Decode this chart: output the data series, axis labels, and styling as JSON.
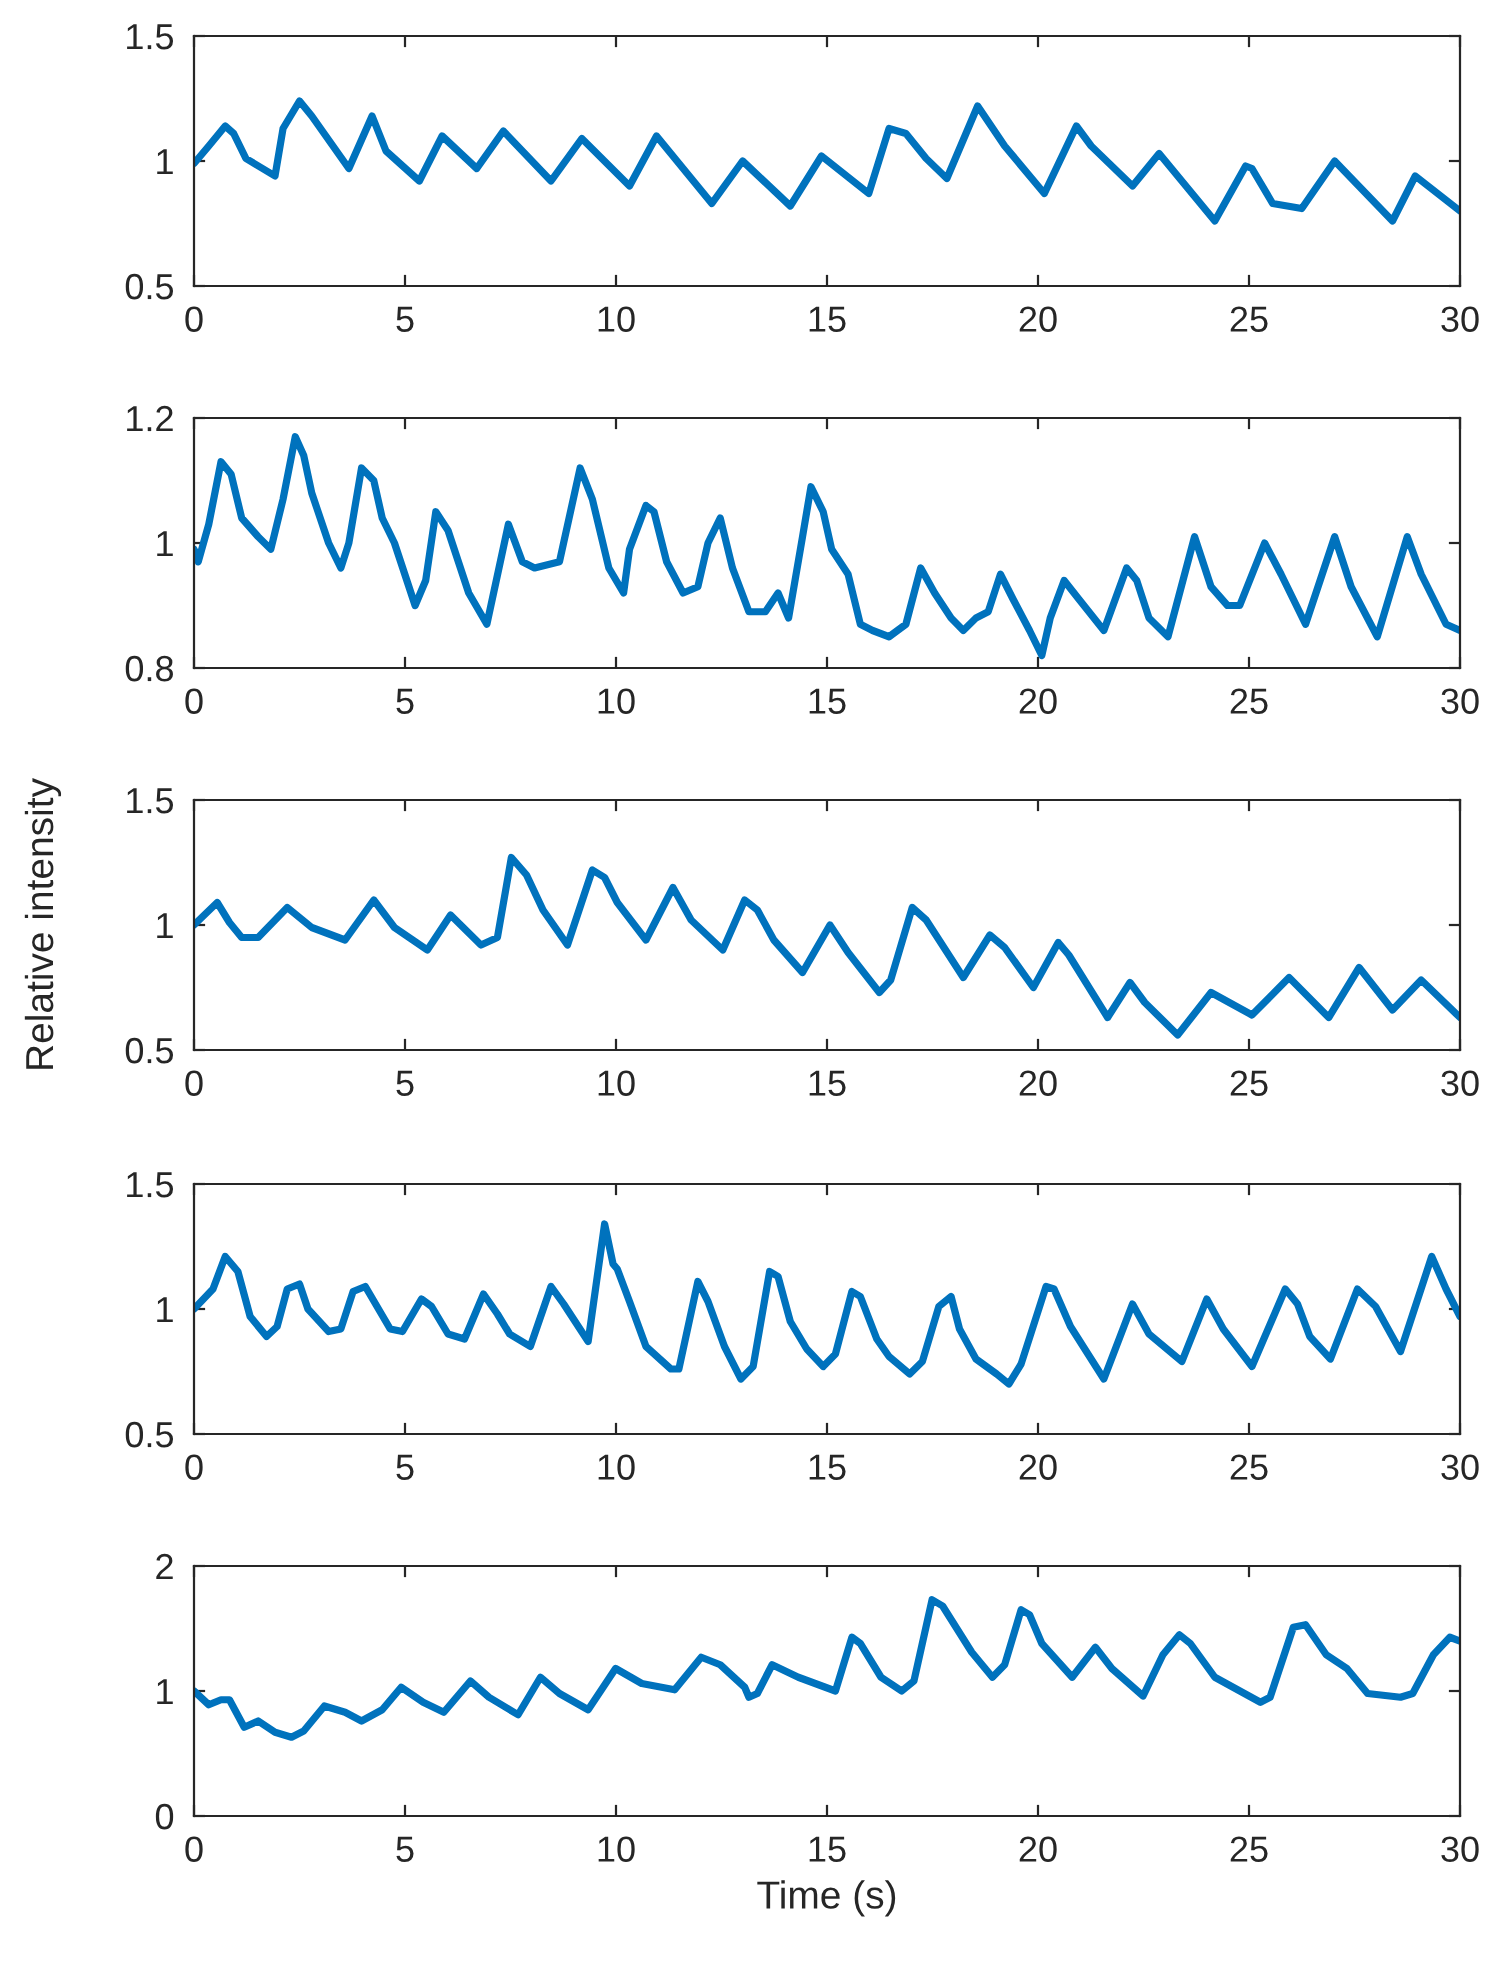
{
  "chart_data": [
    {
      "type": "line",
      "x": [
        0,
        0.35,
        0.74,
        0.94,
        1.23,
        1.92,
        2.11,
        2.5,
        2.79,
        3.67,
        4.22,
        4.55,
        5.34,
        5.88,
        6.7,
        7.33,
        8.46,
        9.19,
        10.32,
        10.96,
        12.27,
        13.0,
        14.13,
        14.87,
        15.99,
        16.47,
        16.87,
        17.35,
        17.84,
        18.57,
        19.21,
        20.15,
        20.91,
        21.26,
        22.24,
        22.87,
        24.19,
        24.92,
        25.07,
        25.56,
        26.25,
        27.03,
        28.4,
        28.94,
        30
      ],
      "series": [
        {
          "color": "#0072bd",
          "values": [
            0.99,
            1.06,
            1.14,
            1.11,
            1.01,
            0.94,
            1.13,
            1.24,
            1.18,
            0.97,
            1.18,
            1.04,
            0.92,
            1.1,
            0.97,
            1.12,
            0.92,
            1.09,
            0.9,
            1.1,
            0.83,
            1.0,
            0.82,
            1.02,
            0.87,
            1.13,
            1.11,
            1.01,
            0.93,
            1.22,
            1.06,
            0.87,
            1.14,
            1.06,
            0.9,
            1.03,
            0.76,
            0.98,
            0.97,
            0.83,
            0.81,
            1.0,
            0.76,
            0.94,
            0.8
          ]
        }
      ],
      "xlim": [
        0,
        30
      ],
      "xticks": [
        0,
        5,
        10,
        15,
        20,
        25,
        30
      ],
      "ylim": [
        0.5,
        1.5
      ],
      "yticks": [
        0.5,
        1,
        1.5
      ],
      "grid": false
    },
    {
      "type": "line",
      "x": [
        0,
        0.1,
        0.35,
        0.64,
        0.88,
        1.13,
        1.52,
        1.82,
        2.11,
        2.4,
        2.6,
        2.79,
        3.19,
        3.48,
        3.67,
        3.97,
        4.26,
        4.46,
        4.75,
        5.24,
        5.49,
        5.73,
        6.02,
        6.51,
        6.94,
        7.45,
        7.78,
        8.07,
        8.66,
        9.15,
        9.44,
        9.83,
        10.18,
        10.32,
        10.71,
        10.9,
        11.2,
        11.59,
        11.94,
        12.18,
        12.47,
        12.76,
        13.15,
        13.54,
        13.84,
        14.09,
        14.42,
        14.62,
        14.91,
        15.11,
        15.5,
        15.79,
        16.08,
        16.47,
        16.87,
        17.22,
        17.55,
        17.94,
        18.23,
        18.53,
        18.82,
        19.11,
        19.41,
        19.8,
        20.09,
        20.29,
        20.62,
        20.97,
        21.56,
        22.1,
        22.34,
        22.63,
        23.08,
        23.71,
        24.1,
        24.49,
        24.78,
        25.37,
        25.76,
        26.34,
        27.03,
        27.42,
        28.04,
        28.75,
        29.08,
        29.67,
        30
      ],
      "series": [
        {
          "color": "#0072bd",
          "values": [
            0.99,
            0.97,
            1.03,
            1.13,
            1.11,
            1.04,
            1.01,
            0.99,
            1.07,
            1.17,
            1.14,
            1.08,
            1.0,
            0.96,
            1.0,
            1.12,
            1.1,
            1.04,
            1.0,
            0.9,
            0.94,
            1.05,
            1.02,
            0.92,
            0.87,
            1.03,
            0.97,
            0.96,
            0.97,
            1.12,
            1.07,
            0.96,
            0.92,
            0.99,
            1.06,
            1.05,
            0.97,
            0.92,
            0.93,
            1.0,
            1.04,
            0.96,
            0.89,
            0.89,
            0.92,
            0.88,
            1.01,
            1.09,
            1.05,
            0.99,
            0.95,
            0.87,
            0.86,
            0.85,
            0.87,
            0.96,
            0.92,
            0.88,
            0.86,
            0.88,
            0.89,
            0.95,
            0.91,
            0.86,
            0.82,
            0.88,
            0.94,
            0.91,
            0.86,
            0.96,
            0.94,
            0.88,
            0.85,
            1.01,
            0.93,
            0.9,
            0.9,
            1.0,
            0.95,
            0.87,
            1.01,
            0.93,
            0.85,
            1.01,
            0.95,
            0.87,
            0.86
          ]
        }
      ],
      "xlim": [
        0,
        30
      ],
      "xticks": [
        0,
        5,
        10,
        15,
        20,
        25,
        30
      ],
      "ylim": [
        0.8,
        1.2
      ],
      "yticks": [
        0.8,
        1,
        1.2
      ],
      "grid": false
    },
    {
      "type": "line",
      "ylabel": "Relative intensity",
      "x": [
        0,
        0.55,
        0.84,
        1.13,
        1.52,
        2.21,
        2.79,
        3.58,
        4.26,
        4.75,
        5.53,
        6.08,
        6.8,
        7.19,
        7.52,
        7.88,
        8.27,
        8.85,
        9.44,
        9.73,
        10.03,
        10.71,
        11.35,
        11.78,
        12.53,
        13.05,
        13.35,
        13.74,
        14.42,
        15.07,
        15.5,
        16.24,
        16.51,
        17.02,
        17.35,
        18.23,
        18.86,
        19.21,
        19.89,
        20.48,
        20.73,
        21.65,
        22.18,
        22.53,
        23.31,
        24.1,
        25.07,
        25.95,
        26.89,
        27.61,
        28.4,
        29.08,
        30
      ],
      "series": [
        {
          "color": "#0072bd",
          "values": [
            1.0,
            1.09,
            1.01,
            0.95,
            0.95,
            1.07,
            0.99,
            0.94,
            1.1,
            0.99,
            0.9,
            1.04,
            0.92,
            0.95,
            1.27,
            1.2,
            1.06,
            0.92,
            1.22,
            1.19,
            1.09,
            0.94,
            1.15,
            1.02,
            0.9,
            1.1,
            1.06,
            0.94,
            0.81,
            1.0,
            0.89,
            0.73,
            0.78,
            1.07,
            1.02,
            0.79,
            0.96,
            0.91,
            0.75,
            0.93,
            0.88,
            0.63,
            0.77,
            0.69,
            0.56,
            0.73,
            0.64,
            0.79,
            0.63,
            0.83,
            0.66,
            0.78,
            0.63
          ]
        }
      ],
      "xlim": [
        0,
        30
      ],
      "xticks": [
        0,
        5,
        10,
        15,
        20,
        25,
        30
      ],
      "ylim": [
        0.5,
        1.5
      ],
      "yticks": [
        0.5,
        1,
        1.5
      ],
      "grid": false
    },
    {
      "type": "line",
      "x": [
        0,
        0.45,
        0.74,
        1.04,
        1.33,
        1.72,
        1.97,
        2.21,
        2.5,
        2.7,
        3.19,
        3.48,
        3.77,
        4.06,
        4.65,
        4.94,
        5.39,
        5.63,
        6.02,
        6.41,
        6.86,
        7.19,
        7.48,
        7.97,
        8.46,
        8.76,
        9.34,
        9.73,
        9.93,
        10.03,
        10.32,
        10.71,
        11.3,
        11.49,
        11.94,
        12.18,
        12.57,
        12.96,
        13.25,
        13.64,
        13.84,
        14.13,
        14.52,
        14.91,
        15.2,
        15.59,
        15.79,
        16.18,
        16.47,
        16.96,
        17.26,
        17.65,
        17.94,
        18.14,
        18.53,
        19.02,
        19.31,
        19.6,
        20.19,
        20.38,
        20.77,
        21.56,
        22.24,
        22.63,
        23.41,
        24.0,
        24.39,
        25.07,
        25.86,
        26.15,
        26.44,
        26.93,
        27.57,
        28.0,
        28.59,
        29.33,
        29.67,
        30
      ],
      "series": [
        {
          "color": "#0072bd",
          "values": [
            1.0,
            1.08,
            1.21,
            1.15,
            0.97,
            0.89,
            0.93,
            1.08,
            1.1,
            1.0,
            0.91,
            0.92,
            1.07,
            1.09,
            0.92,
            0.91,
            1.04,
            1.01,
            0.9,
            0.88,
            1.06,
            0.98,
            0.9,
            0.85,
            1.09,
            1.02,
            0.87,
            1.34,
            1.18,
            1.16,
            1.03,
            0.85,
            0.76,
            0.76,
            1.11,
            1.03,
            0.85,
            0.72,
            0.77,
            1.15,
            1.13,
            0.95,
            0.84,
            0.77,
            0.82,
            1.07,
            1.05,
            0.88,
            0.81,
            0.74,
            0.79,
            1.01,
            1.05,
            0.92,
            0.8,
            0.74,
            0.7,
            0.78,
            1.09,
            1.08,
            0.93,
            0.72,
            1.02,
            0.9,
            0.79,
            1.04,
            0.92,
            0.77,
            1.08,
            1.02,
            0.89,
            0.8,
            1.08,
            1.01,
            0.83,
            1.21,
            1.08,
            0.97
          ]
        }
      ],
      "xlim": [
        0,
        30
      ],
      "xticks": [
        0,
        5,
        10,
        15,
        20,
        25,
        30
      ],
      "ylim": [
        0.5,
        1.5
      ],
      "yticks": [
        0.5,
        1,
        1.5
      ],
      "grid": false
    },
    {
      "type": "line",
      "xlabel": "Time (s)",
      "x": [
        0,
        0.35,
        0.64,
        0.84,
        1.19,
        1.52,
        1.92,
        2.31,
        2.6,
        3.09,
        3.58,
        3.97,
        4.46,
        4.91,
        5.43,
        5.92,
        6.55,
        6.99,
        7.68,
        8.21,
        8.66,
        9.34,
        9.99,
        10.61,
        11.39,
        12.02,
        12.47,
        13.05,
        13.15,
        13.35,
        13.7,
        14.32,
        15.2,
        15.59,
        15.79,
        16.28,
        16.77,
        17.06,
        17.49,
        17.74,
        18.43,
        18.92,
        19.21,
        19.6,
        19.8,
        20.09,
        20.81,
        21.36,
        21.75,
        22.49,
        22.96,
        23.35,
        23.61,
        24.19,
        25.27,
        25.5,
        26.05,
        26.34,
        26.83,
        27.32,
        27.81,
        28.59,
        28.88,
        29.37,
        29.76,
        30
      ],
      "series": [
        {
          "color": "#0072bd",
          "values": [
            1.0,
            0.89,
            0.93,
            0.93,
            0.71,
            0.76,
            0.67,
            0.63,
            0.68,
            0.88,
            0.83,
            0.76,
            0.85,
            1.03,
            0.91,
            0.83,
            1.08,
            0.95,
            0.81,
            1.11,
            0.98,
            0.85,
            1.18,
            1.06,
            1.01,
            1.27,
            1.21,
            1.03,
            0.95,
            0.98,
            1.21,
            1.11,
            1.0,
            1.43,
            1.38,
            1.11,
            1.0,
            1.08,
            1.73,
            1.68,
            1.31,
            1.11,
            1.21,
            1.65,
            1.61,
            1.38,
            1.11,
            1.35,
            1.18,
            0.96,
            1.29,
            1.45,
            1.38,
            1.11,
            0.91,
            0.95,
            1.51,
            1.53,
            1.29,
            1.18,
            0.98,
            0.95,
            0.98,
            1.29,
            1.43,
            1.4
          ]
        }
      ],
      "xlim": [
        0,
        30
      ],
      "xticks": [
        0,
        5,
        10,
        15,
        20,
        25,
        30
      ],
      "ylim": [
        0,
        2
      ],
      "yticks": [
        0,
        1,
        2
      ],
      "grid": false
    }
  ]
}
